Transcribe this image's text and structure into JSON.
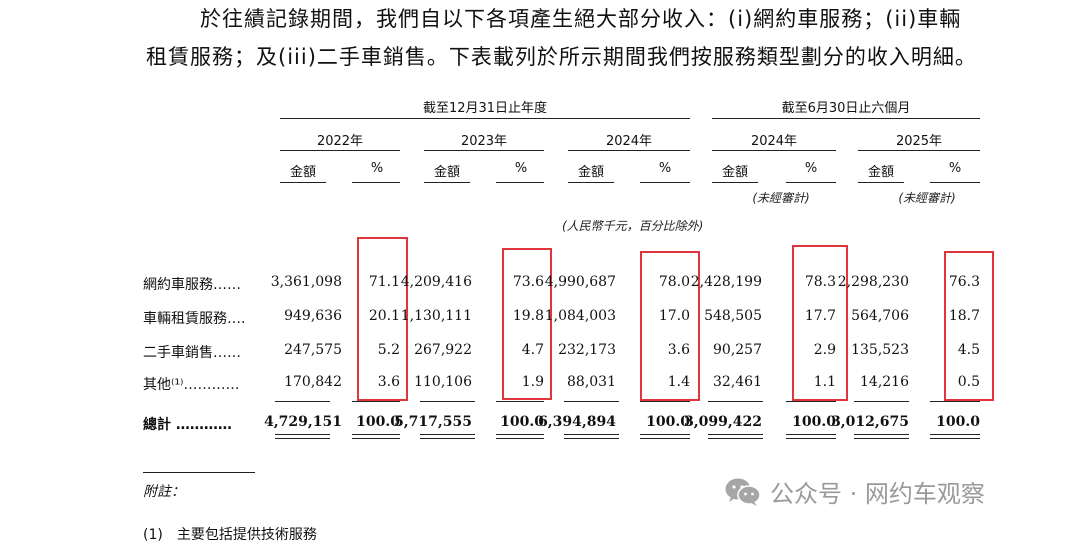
{
  "intro": {
    "line1": "於往績記錄期間，我們自以下各項產生絕大部分收入：(i)網約車服務；(ii)車輛",
    "line2": "租賃服務；及(iii)二手車銷售。下表載列於所示期間我們按服務類型劃分的收入明細。"
  },
  "table": {
    "group_fy": "截至12月31日止年度",
    "group_6m": "截至6月30日止六個月",
    "years": [
      "2022年",
      "2023年",
      "2024年",
      "2024年",
      "2025年"
    ],
    "col_amount": "金額",
    "col_pct": "%",
    "unaudited": "(未經審計)",
    "unit_note": "(人民幣千元，百分比除外)",
    "rows": [
      {
        "label": "網約車服務……",
        "values": [
          "3,361,098",
          "71.1",
          "4,209,416",
          "73.6",
          "4,990,687",
          "78.0",
          "2,428,199",
          "78.3",
          "2,298,230",
          "76.3"
        ]
      },
      {
        "label": "車輛租賃服務….",
        "values": [
          "949,636",
          "20.1",
          "1,130,111",
          "19.8",
          "1,084,003",
          "17.0",
          "548,505",
          "17.7",
          "564,706",
          "18.7"
        ]
      },
      {
        "label": "二手車銷售……",
        "values": [
          "247,575",
          "5.2",
          "267,922",
          "4.7",
          "232,173",
          "3.6",
          "90,257",
          "2.9",
          "135,523",
          "4.5"
        ]
      },
      {
        "label": "其他⁽¹⁾…………",
        "values": [
          "170,842",
          "3.6",
          "110,106",
          "1.9",
          "88,031",
          "1.4",
          "32,461",
          "1.1",
          "14,216",
          "0.5"
        ]
      }
    ],
    "total": {
      "label": "總計 …………",
      "values": [
        "4,729,151",
        "100.0",
        "5,717,555",
        "100.0",
        "6,394,894",
        "100.0",
        "3,099,422",
        "100.0",
        "3,012,675",
        "100.0"
      ]
    }
  },
  "footnote": {
    "title": "附註：",
    "cut_line": "(1)　主要包括提供技術服務"
  },
  "watermark": {
    "text": "公众号 · 网约车观察",
    "icon": "wechat-icon",
    "color": "#9a9a9a"
  },
  "highlight_color": "#e0353b"
}
